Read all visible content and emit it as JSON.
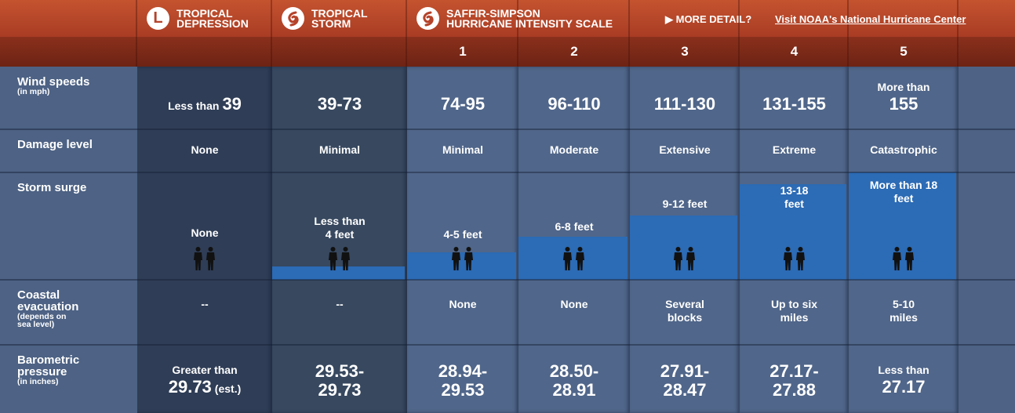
{
  "header": {
    "groups": [
      {
        "icon": "L",
        "title": [
          "TROPICAL",
          "DEPRESSION"
        ]
      },
      {
        "title": [
          "TROPICAL",
          "STORM"
        ]
      },
      {
        "title": [
          "SAFFIR-SIMPSON",
          "HURRICANE INTENSITY SCALE"
        ]
      }
    ],
    "more_detail": "▶ MORE DETAIL?",
    "link": "Visit NOAA's National Hurricane Center",
    "categories": [
      "1",
      "2",
      "3",
      "4",
      "5"
    ]
  },
  "rows": [
    {
      "label": [
        "Wind speeds"
      ],
      "sublabel": [
        "(in mph)"
      ],
      "cells": [
        {
          "lines": [
            [
              {
                "text": "Less than",
                "size": "medium"
              },
              {
                "text": "39",
                "size": "large"
              }
            ]
          ]
        },
        {
          "lines": [
            [
              {
                "text": "39-73",
                "size": "large"
              }
            ]
          ]
        },
        {
          "lines": [
            [
              {
                "text": "74-95",
                "size": "large"
              }
            ]
          ]
        },
        {
          "lines": [
            [
              {
                "text": "96-110",
                "size": "large"
              }
            ]
          ]
        },
        {
          "lines": [
            [
              {
                "text": "111-130",
                "size": "large"
              }
            ]
          ]
        },
        {
          "lines": [
            [
              {
                "text": "131-155",
                "size": "large"
              }
            ]
          ]
        },
        {
          "lines": [
            [
              {
                "text": "More than",
                "size": "medium"
              }
            ],
            [
              {
                "text": "155",
                "size": "large"
              }
            ]
          ]
        }
      ]
    },
    {
      "label": [
        "Damage level"
      ],
      "cells": [
        {
          "lines": [
            [
              {
                "text": "None",
                "size": "medium"
              }
            ]
          ]
        },
        {
          "lines": [
            [
              {
                "text": "Minimal",
                "size": "medium"
              }
            ]
          ]
        },
        {
          "lines": [
            [
              {
                "text": "Minimal",
                "size": "medium"
              }
            ]
          ]
        },
        {
          "lines": [
            [
              {
                "text": "Moderate",
                "size": "medium"
              }
            ]
          ]
        },
        {
          "lines": [
            [
              {
                "text": "Extensive",
                "size": "medium"
              }
            ]
          ]
        },
        {
          "lines": [
            [
              {
                "text": "Extreme",
                "size": "medium"
              }
            ]
          ]
        },
        {
          "lines": [
            [
              {
                "text": "Catastrophic",
                "size": "medium"
              }
            ]
          ]
        }
      ]
    },
    {
      "label": [
        "Storm surge"
      ],
      "cells": [
        {
          "lines": [
            [
              {
                "text": "None",
                "size": "medium"
              }
            ]
          ]
        },
        {
          "lines": [
            [
              {
                "text": "Less than",
                "size": "medium"
              }
            ],
            [
              {
                "text": "4 feet",
                "size": "medium"
              }
            ]
          ]
        },
        {
          "lines": [
            [
              {
                "text": "4-5 feet",
                "size": "medium"
              }
            ]
          ]
        },
        {
          "lines": [
            [
              {
                "text": "6-8 feet",
                "size": "medium"
              }
            ]
          ]
        },
        {
          "lines": [
            [
              {
                "text": "9-12 feet",
                "size": "medium"
              }
            ]
          ]
        },
        {
          "lines": [
            [
              {
                "text": "13-18",
                "size": "medium"
              }
            ],
            [
              {
                "text": "feet",
                "size": "medium"
              }
            ]
          ]
        },
        {
          "lines": [
            [
              {
                "text": "More than 18",
                "size": "medium"
              }
            ],
            [
              {
                "text": "feet",
                "size": "medium"
              }
            ]
          ]
        }
      ]
    },
    {
      "label": [
        "Coastal",
        "evacuation"
      ],
      "sublabel": [
        "(depends on",
        "sea level)"
      ],
      "cells": [
        {
          "lines": [
            [
              {
                "text": "--",
                "size": "medium"
              }
            ]
          ]
        },
        {
          "lines": [
            [
              {
                "text": "--",
                "size": "medium"
              }
            ]
          ]
        },
        {
          "lines": [
            [
              {
                "text": "None",
                "size": "medium"
              }
            ]
          ]
        },
        {
          "lines": [
            [
              {
                "text": "None",
                "size": "medium"
              }
            ]
          ]
        },
        {
          "lines": [
            [
              {
                "text": "Several",
                "size": "medium"
              }
            ],
            [
              {
                "text": "blocks",
                "size": "medium"
              }
            ]
          ]
        },
        {
          "lines": [
            [
              {
                "text": "Up to six",
                "size": "medium"
              }
            ],
            [
              {
                "text": "miles",
                "size": "medium"
              }
            ]
          ]
        },
        {
          "lines": [
            [
              {
                "text": "5-10",
                "size": "medium"
              }
            ],
            [
              {
                "text": "miles",
                "size": "medium"
              }
            ]
          ]
        }
      ]
    },
    {
      "label": [
        "Barometric",
        "pressure"
      ],
      "sublabel": [
        "(in inches)"
      ],
      "cells": [
        {
          "lines": [
            [
              {
                "text": "Greater than",
                "size": "medium"
              }
            ],
            [
              {
                "text": "29.73",
                "size": "large"
              },
              {
                "text": "(est.)",
                "size": "medium"
              }
            ]
          ]
        },
        {
          "lines": [
            [
              {
                "text": "29.53-",
                "size": "large"
              }
            ],
            [
              {
                "text": "29.73",
                "size": "large"
              }
            ]
          ]
        },
        {
          "lines": [
            [
              {
                "text": "28.94-",
                "size": "large"
              }
            ],
            [
              {
                "text": "29.53",
                "size": "large"
              }
            ]
          ]
        },
        {
          "lines": [
            [
              {
                "text": "28.50-",
                "size": "large"
              }
            ],
            [
              {
                "text": "28.91",
                "size": "large"
              }
            ]
          ]
        },
        {
          "lines": [
            [
              {
                "text": "27.91-",
                "size": "large"
              }
            ],
            [
              {
                "text": "28.47",
                "size": "large"
              }
            ]
          ]
        },
        {
          "lines": [
            [
              {
                "text": "27.17-",
                "size": "large"
              }
            ],
            [
              {
                "text": "27.88",
                "size": "large"
              }
            ]
          ]
        },
        {
          "lines": [
            [
              {
                "text": "Less than",
                "size": "medium"
              }
            ],
            [
              {
                "text": "27.17",
                "size": "large"
              }
            ]
          ]
        }
      ]
    }
  ]
}
